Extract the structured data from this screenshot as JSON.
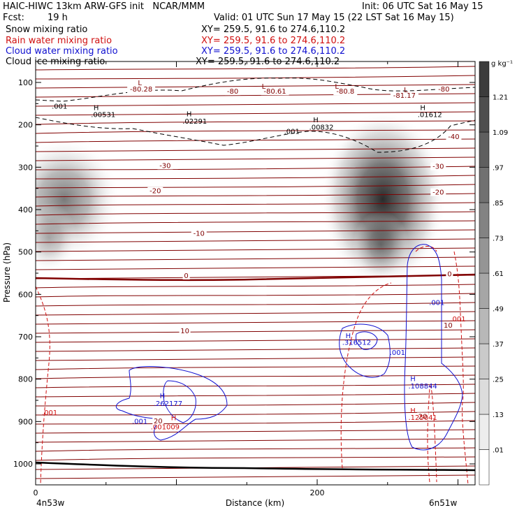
{
  "header": {
    "title": "HAIC-HIWC 13km ARW-GFS init   NCAR/MMM",
    "init": "Init: 06 UTC Sat 16 May 15",
    "fcst_label": "Fcst:",
    "fcst_value": "19 h",
    "valid": "Valid: 01 UTC Sun 17 May 15 (22 LST Sat 16 May 15)",
    "fields": [
      {
        "name": "Snow mixing ratio",
        "xy": "XY= 259.5, 91.6 to 274.6,110.2",
        "color": "#000000"
      },
      {
        "name": "Rain water mixing ratio",
        "xy": "XY= 259.5, 91.6 to 274.6,110.2",
        "color": "#d01010"
      },
      {
        "name": "Cloud water mixing ratio",
        "xy": "XY= 259.5, 91.6 to 274.6,110.2",
        "color": "#1010d0"
      },
      {
        "name": "Cloud ice mixing ratio",
        "xy": "XY= 259.5, 91.6 to 274.6,110.2",
        "color": "#000000"
      }
    ]
  },
  "chart_data": {
    "type": "heatmap",
    "xlabel": "Distance (km)",
    "ylabel": "Pressure (hPa)",
    "x_ticks": [
      0,
      200
    ],
    "y_ticks": [
      100,
      200,
      300,
      400,
      500,
      600,
      700,
      800,
      900,
      1000
    ],
    "xlim": [
      0,
      300
    ],
    "ylim": [
      1050,
      50
    ],
    "endpoint_left": "4n53w",
    "endpoint_right": "6n51w",
    "colorbar_unit": "g kg⁻¹",
    "colorbar_labels": [
      ".01",
      ".13",
      ".25",
      ".37",
      ".49",
      ".61",
      ".73",
      ".85",
      ".97",
      "1.09",
      "1.21"
    ],
    "temperature_labels": [
      {
        "text": "-80.28",
        "x": 75,
        "p": 120,
        "color": "#800000"
      },
      {
        "text": "-80",
        "x": 140,
        "p": 125,
        "color": "#800000"
      },
      {
        "text": "-80.61",
        "x": 170,
        "p": 125,
        "color": "#800000"
      },
      {
        "text": "-80.8",
        "x": 220,
        "p": 125,
        "color": "#800000"
      },
      {
        "text": "-81.17",
        "x": 262,
        "p": 135,
        "color": "#800000"
      },
      {
        "text": "-80",
        "x": 290,
        "p": 120,
        "color": "#800000"
      },
      {
        "text": "-40",
        "x": 297,
        "p": 232,
        "color": "#800000"
      },
      {
        "text": "-30",
        "x": 92,
        "p": 300,
        "color": "#800000"
      },
      {
        "text": "-30",
        "x": 286,
        "p": 302,
        "color": "#800000"
      },
      {
        "text": "-20",
        "x": 85,
        "p": 360,
        "color": "#800000"
      },
      {
        "text": "-20",
        "x": 286,
        "p": 363,
        "color": "#800000"
      },
      {
        "text": "-10",
        "x": 116,
        "p": 460,
        "color": "#800000"
      },
      {
        "text": "0",
        "x": 107,
        "p": 560,
        "color": "#800000"
      },
      {
        "text": "0",
        "x": 294,
        "p": 556,
        "color": "#800000"
      },
      {
        "text": "10",
        "x": 106,
        "p": 690,
        "color": "#800000"
      },
      {
        "text": "10",
        "x": 293,
        "p": 677,
        "color": "#800000"
      },
      {
        "text": "20",
        "x": 87,
        "p": 903,
        "color": "#800000"
      },
      {
        "text": "20",
        "x": 275,
        "p": 892,
        "color": "#800000"
      }
    ],
    "extrema_labels": [
      {
        "text": "L",
        "x": 74,
        "p": 107,
        "color": "#800000"
      },
      {
        "text": "L",
        "x": 162,
        "p": 115,
        "color": "#800000"
      },
      {
        "text": "L",
        "x": 214,
        "p": 115,
        "color": "#800000"
      },
      {
        "text": "L",
        "x": 263,
        "p": 123,
        "color": "#800000"
      },
      {
        "text": "H",
        "x": 43,
        "p": 165,
        "color": "#000000"
      },
      {
        "text": ".00531",
        "x": 48,
        "p": 182,
        "color": "#000000"
      },
      {
        "text": "H",
        "x": 109,
        "p": 180,
        "color": "#000000"
      },
      {
        "text": ".02291",
        "x": 113,
        "p": 197,
        "color": "#000000"
      },
      {
        "text": "H",
        "x": 199,
        "p": 194,
        "color": "#000000"
      },
      {
        "text": ".00832",
        "x": 203,
        "p": 211,
        "color": "#000000"
      },
      {
        "text": "H",
        "x": 275,
        "p": 165,
        "color": "#000000"
      },
      {
        "text": ".01612",
        "x": 280,
        "p": 182,
        "color": "#000000"
      },
      {
        "text": ".001",
        "x": 17,
        "p": 162,
        "color": "#000000"
      },
      {
        "text": ".001",
        "x": 182,
        "p": 221,
        "color": "#000000"
      },
      {
        "text": "H",
        "x": 90,
        "p": 845,
        "color": "#1010d0"
      },
      {
        "text": ".262177",
        "x": 94,
        "p": 863,
        "color": "#1010d0"
      },
      {
        "text": ".001",
        "x": 74,
        "p": 905,
        "color": "#1010d0"
      },
      {
        "text": "H",
        "x": 98,
        "p": 897,
        "color": "#d01010"
      },
      {
        "text": ".001009",
        "x": 92,
        "p": 918,
        "color": "#d01010"
      },
      {
        "text": "H",
        "x": 222,
        "p": 703,
        "color": "#1010d0"
      },
      {
        "text": ".316512",
        "x": 228,
        "p": 719,
        "color": "#1010d0"
      },
      {
        "text": ".001",
        "x": 257,
        "p": 743,
        "color": "#1010d0"
      },
      {
        "text": ".001",
        "x": 285,
        "p": 625,
        "color": "#1010d0"
      },
      {
        "text": "H",
        "x": 268,
        "p": 805,
        "color": "#1010d0"
      },
      {
        "text": ".108844",
        "x": 275,
        "p": 822,
        "color": "#1010d0"
      },
      {
        "text": "H",
        "x": 268,
        "p": 880,
        "color": "#d01010"
      },
      {
        "text": ".125041",
        "x": 275,
        "p": 896,
        "color": "#d01010"
      },
      {
        "text": ".001",
        "x": 300,
        "p": 664,
        "color": "#d01010"
      },
      {
        "text": ".001",
        "x": 10,
        "p": 885,
        "color": "#d01010"
      }
    ]
  }
}
